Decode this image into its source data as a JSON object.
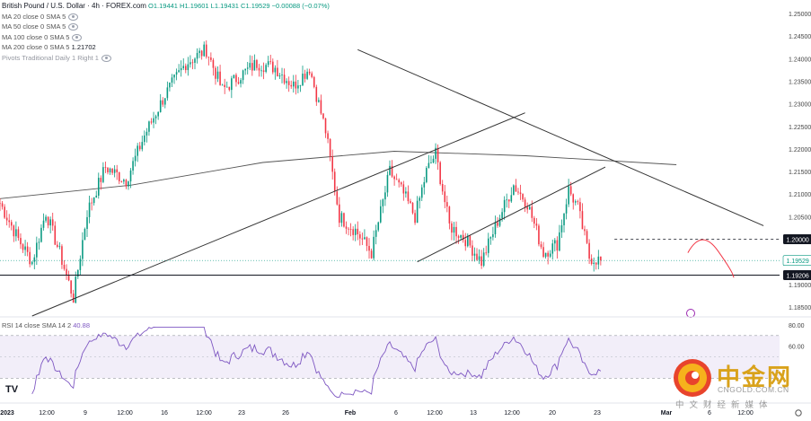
{
  "header": {
    "title": "British Pound / U.S. Dollar · 4h · FOREX.com",
    "ohlc": "O1.19441 H1.19601 L1.19431 C1.19529 −0.00088 (−0.07%)",
    "indicators": [
      {
        "label": "MA 20 close 0 SMA 5",
        "value": ""
      },
      {
        "label": "MA 50 close 0 SMA 5",
        "value": ""
      },
      {
        "label": "MA 100 close 0 SMA 5",
        "value": ""
      },
      {
        "label": "MA 200 close 0 SMA 5",
        "value": "1.21702"
      },
      {
        "label": "Pivots Traditional Daily 1 Right 1",
        "value": ""
      }
    ]
  },
  "rsi_header": {
    "label": "RSI 14 close SMA 14 2",
    "value": "40.88"
  },
  "price_axis_labels": [
    "1.25000",
    "1.24500",
    "1.24000",
    "1.23500",
    "1.23000",
    "1.22500",
    "1.22000",
    "1.21500",
    "1.21000",
    "1.20500",
    "1.19000",
    "1.18500"
  ],
  "price_badges": [
    {
      "text": "1.20000",
      "price": 1.2
    },
    {
      "text": "1.19529",
      "price": 1.19529
    },
    {
      "text": "1.19206",
      "price": 1.19206
    }
  ],
  "rsi_axis_labels": [
    "80.00",
    "60.00"
  ],
  "time_axis_labels": [
    "2023",
    "12:00",
    "9",
    "12:00",
    "16",
    "12:00",
    "23",
    "26",
    "Feb",
    "6",
    "12:00",
    "13",
    "12:00",
    "20",
    "23",
    "Mar",
    "6",
    "12:00"
  ],
  "watermark": {
    "brand": "中金网",
    "url": "CNGOLD.COM.CN",
    "tagline": "中文财经新媒体"
  },
  "tv_logo": "TV",
  "colors": {
    "up": "#089981",
    "down": "#f23645",
    "ma200": "#555555",
    "rsi": "#7e57c2",
    "trend": "#333333",
    "projection": "#f23645"
  },
  "chart_data": {
    "type": "candlestick",
    "symbol": "GBPUSD",
    "timeframe": "4h",
    "ylim": [
      1.183,
      1.253
    ],
    "x_range_dates": [
      "2023-01-02",
      "2023-03-07"
    ],
    "candles": {
      "start_close": 1.208,
      "path": [
        {
          "i": 0,
          "price": 1.208
        },
        {
          "i": 8,
          "price": 1.2
        },
        {
          "i": 14,
          "price": 1.195
        },
        {
          "i": 20,
          "price": 1.206
        },
        {
          "i": 26,
          "price": 1.197
        },
        {
          "i": 32,
          "price": 1.187
        },
        {
          "i": 38,
          "price": 1.206
        },
        {
          "i": 46,
          "price": 1.216
        },
        {
          "i": 55,
          "price": 1.213
        },
        {
          "i": 63,
          "price": 1.223
        },
        {
          "i": 72,
          "price": 1.232
        },
        {
          "i": 81,
          "price": 1.239
        },
        {
          "i": 90,
          "price": 1.242
        },
        {
          "i": 97,
          "price": 1.233
        },
        {
          "i": 104,
          "price": 1.236
        },
        {
          "i": 112,
          "price": 1.239
        },
        {
          "i": 120,
          "price": 1.238
        },
        {
          "i": 128,
          "price": 1.234
        },
        {
          "i": 135,
          "price": 1.238
        },
        {
          "i": 142,
          "price": 1.224
        },
        {
          "i": 148,
          "price": 1.205
        },
        {
          "i": 155,
          "price": 1.202
        },
        {
          "i": 162,
          "price": 1.197
        },
        {
          "i": 170,
          "price": 1.215
        },
        {
          "i": 176,
          "price": 1.21
        },
        {
          "i": 181,
          "price": 1.205
        },
        {
          "i": 186,
          "price": 1.215
        },
        {
          "i": 190,
          "price": 1.219
        },
        {
          "i": 196,
          "price": 1.203
        },
        {
          "i": 203,
          "price": 1.2
        },
        {
          "i": 210,
          "price": 1.195
        },
        {
          "i": 217,
          "price": 1.204
        },
        {
          "i": 224,
          "price": 1.212
        },
        {
          "i": 230,
          "price": 1.208
        },
        {
          "i": 237,
          "price": 1.197
        },
        {
          "i": 243,
          "price": 1.199
        },
        {
          "i": 248,
          "price": 1.211
        },
        {
          "i": 252,
          "price": 1.207
        },
        {
          "i": 257,
          "price": 1.196
        },
        {
          "i": 262,
          "price": 1.1953
        }
      ]
    },
    "ma200": [
      {
        "date": "2023-01-02",
        "price": 1.209
      },
      {
        "date": "2023-01-16",
        "price": 1.212
      },
      {
        "date": "2023-01-30",
        "price": 1.217
      },
      {
        "date": "2023-02-13",
        "price": 1.2195
      },
      {
        "date": "2023-02-27",
        "price": 1.2185
      },
      {
        "date": "2023-03-07",
        "price": 1.2165
      }
    ],
    "trendlines": [
      {
        "name": "descending-resistance",
        "from": {
          "i": 156,
          "price": 1.242
        },
        "to": {
          "i": 333,
          "price": 1.203
        }
      },
      {
        "name": "ascending-support-long",
        "from": {
          "i": 14,
          "price": 1.183
        },
        "to": {
          "i": 229,
          "price": 1.228
        }
      },
      {
        "name": "ascending-channel",
        "from": {
          "i": 182,
          "price": 1.195
        },
        "to": {
          "i": 264,
          "price": 1.216
        }
      }
    ],
    "horizontal_levels": [
      {
        "price": 1.2,
        "style": "dashed"
      },
      {
        "price": 1.19206,
        "style": "solid"
      }
    ],
    "projection": [
      {
        "i": 300,
        "price": 1.197
      },
      {
        "i": 306,
        "price": 1.1995
      },
      {
        "i": 313,
        "price": 1.1975
      },
      {
        "i": 320,
        "price": 1.1915
      }
    ],
    "rsi": {
      "ylim": [
        10,
        80
      ],
      "bands": [
        70,
        30
      ],
      "last": 40.88
    }
  }
}
